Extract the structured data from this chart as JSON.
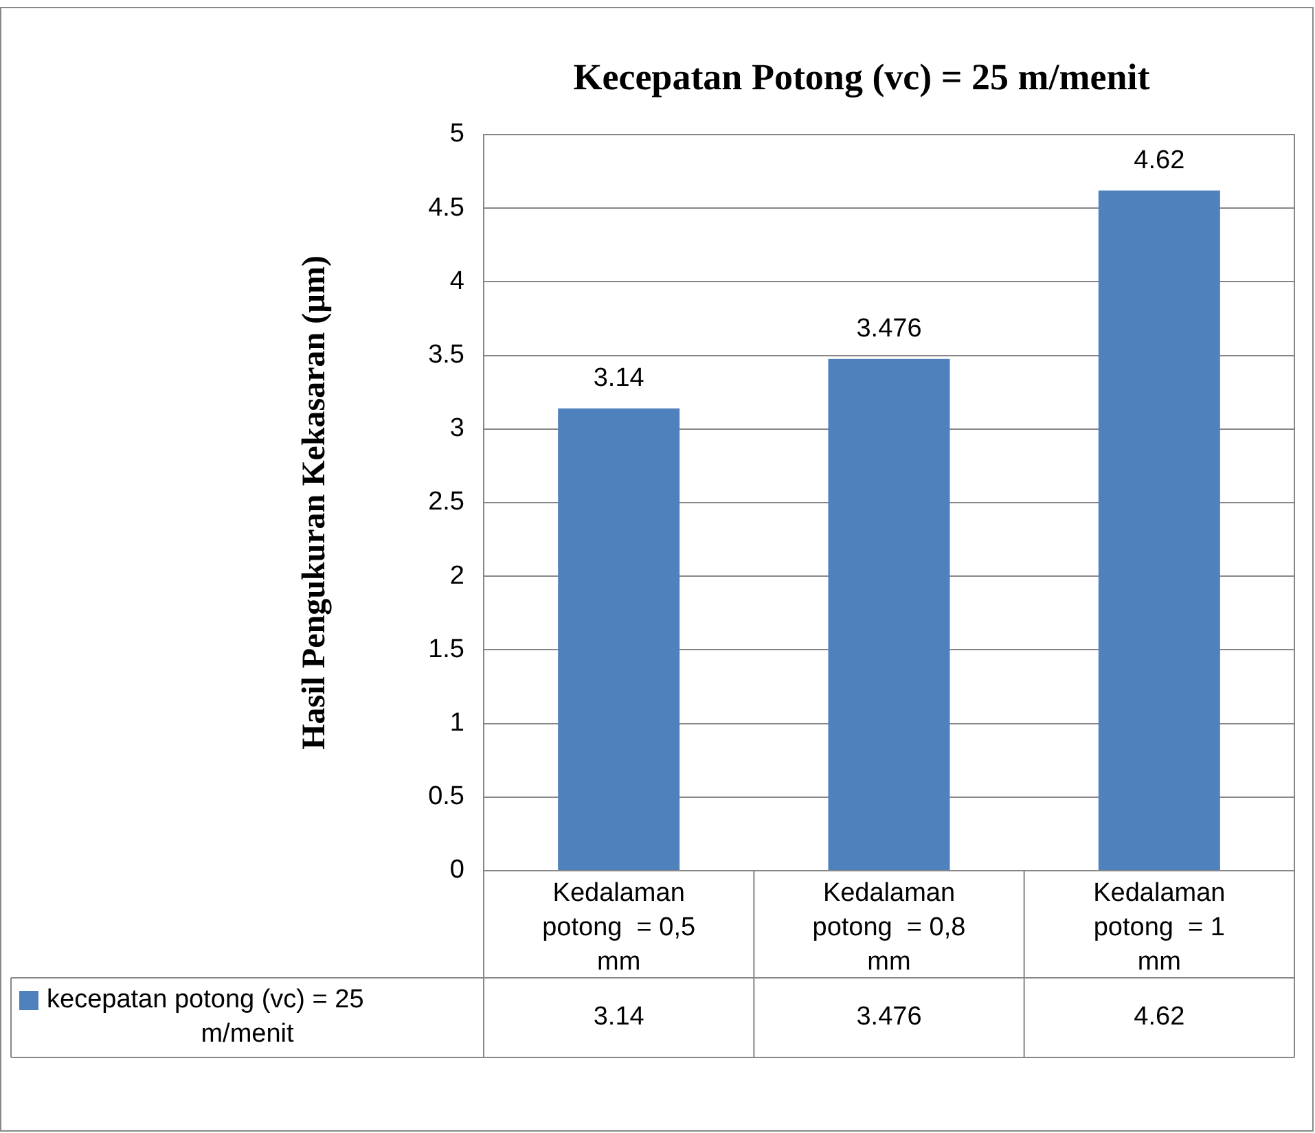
{
  "chart_data": {
    "type": "bar",
    "title": "Kecepatan Potong (vc) = 25 m/menit",
    "ylabel": "Hasil Pengukuran Kekasaran (µm)",
    "categories": [
      "Kedalaman potong  = 0,5 mm",
      "Kedalaman potong  = 0,8 mm",
      "Kedalaman potong  = 1 mm"
    ],
    "series": [
      {
        "name": "kecepatan potong (vc) = 25 m/menit",
        "color": "#4f81bd",
        "values": [
          3.14,
          3.476,
          4.62
        ],
        "value_labels": [
          "3.14",
          "3.476",
          "4.62"
        ]
      }
    ],
    "ylim": [
      0,
      5
    ],
    "yticks": [
      0,
      0.5,
      1,
      1.5,
      2,
      2.5,
      3,
      3.5,
      4,
      4.5,
      5
    ],
    "annotations": [
      "3.14",
      "3.476",
      "4.62"
    ],
    "grid": "y",
    "data_labels": true,
    "legend": "bottom"
  }
}
